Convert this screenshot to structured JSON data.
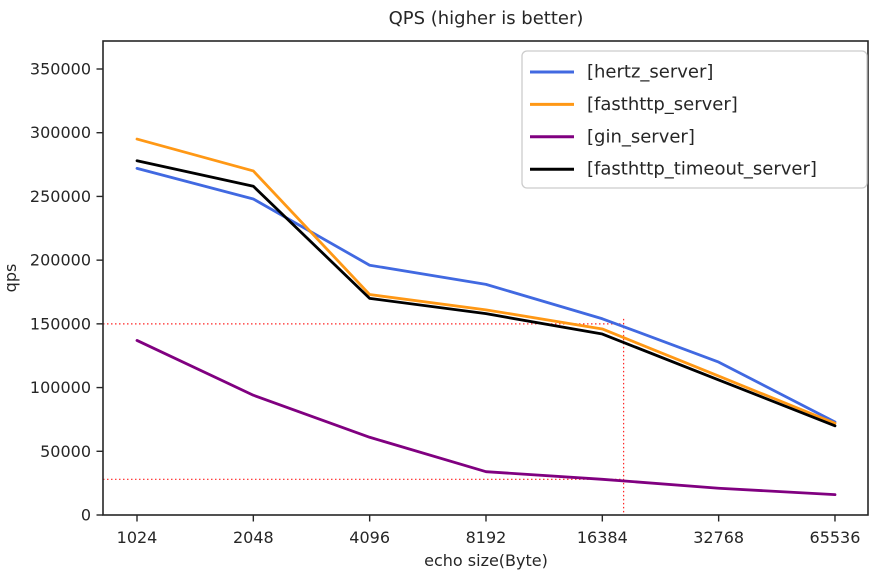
{
  "figure": {
    "background": "#ffffff",
    "frame_color": "#262626",
    "text_color": "#262626"
  },
  "chart_data": {
    "type": "line",
    "title": "QPS (higher is better)",
    "xlabel": "echo size(Byte)",
    "ylabel": "qps",
    "x_scale": "log2-categorical",
    "categories": [
      "1024",
      "2048",
      "4096",
      "8192",
      "16384",
      "32768",
      "65536"
    ],
    "yticks": [
      0,
      50000,
      100000,
      150000,
      200000,
      250000,
      300000,
      350000
    ],
    "ylim": [
      0,
      372000
    ],
    "grid": false,
    "legend_position": "upper right",
    "series": [
      {
        "name": "[hertz_server]",
        "color": "#4169e1",
        "values": [
          272000,
          248000,
          196000,
          181000,
          154000,
          120000,
          73000
        ]
      },
      {
        "name": "[fasthttp_server]",
        "color": "#ff9815",
        "values": [
          295000,
          270000,
          173000,
          161000,
          146000,
          109000,
          72000
        ]
      },
      {
        "name": "[gin_server]",
        "color": "#800080",
        "values": [
          137000,
          94000,
          61000,
          34000,
          28000,
          21000,
          16000
        ]
      },
      {
        "name": "[fasthttp_timeout_server]",
        "color": "#000000",
        "values": [
          278000,
          258000,
          170000,
          158000,
          142000,
          106000,
          70000
        ]
      }
    ],
    "annotations": {
      "crosshair": {
        "color": "#ff0000",
        "style": "dotted",
        "x_value": 18600,
        "h_line_upper": 150000,
        "h_line_lower": 28000
      }
    }
  }
}
